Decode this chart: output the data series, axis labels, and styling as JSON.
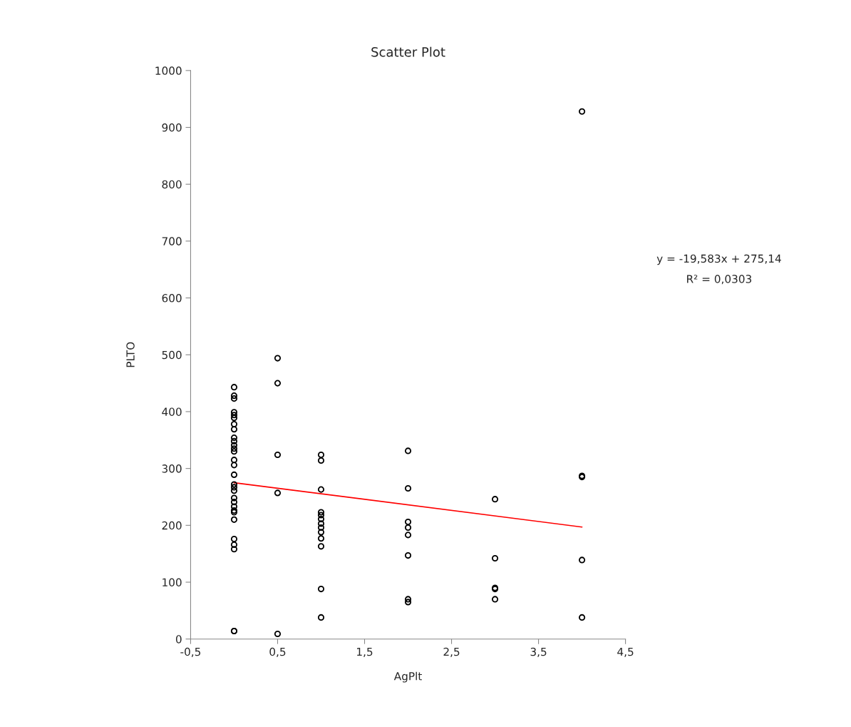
{
  "chart_data": {
    "type": "scatter",
    "title": "Scatter Plot",
    "xlabel": "AgPlt",
    "ylabel": "PLTO",
    "series": [
      {
        "color": "#000000",
        "marker": "circle",
        "x": [
          0,
          0,
          0,
          0,
          0,
          0,
          0,
          0,
          0,
          0,
          0,
          0,
          0,
          0,
          0,
          0,
          0,
          0,
          0,
          0,
          0,
          0,
          0,
          0,
          0,
          0,
          0,
          0,
          0,
          0,
          0.5,
          0.5,
          0.5,
          0.5,
          0.5,
          1,
          1,
          1,
          1,
          1,
          1,
          1,
          1,
          1,
          1,
          1,
          1,
          1,
          2,
          2,
          2,
          2,
          2,
          2,
          2,
          2,
          3,
          3,
          3,
          3,
          3,
          4,
          4,
          4,
          4,
          4
        ],
        "values": [
          443,
          428,
          423,
          399,
          394,
          389,
          378,
          369,
          354,
          348,
          341,
          335,
          330,
          315,
          306,
          289,
          272,
          267,
          261,
          248,
          241,
          233,
          226,
          223,
          210,
          176,
          166,
          158,
          14,
          14,
          494,
          450,
          324,
          257,
          9,
          324,
          314,
          263,
          223,
          218,
          211,
          203,
          196,
          188,
          177,
          163,
          88,
          38,
          331,
          265,
          206,
          196,
          183,
          147,
          70,
          65,
          246,
          142,
          90,
          88,
          70,
          928,
          287,
          285,
          139,
          38
        ]
      },
      {
        "type": "line",
        "color": "#ff0000",
        "line_style": "solid",
        "x": [
          0,
          4
        ],
        "values": [
          275,
          197
        ]
      }
    ],
    "xlim": [
      -0.5,
      4.5
    ],
    "xticks": [
      {
        "value": -0.5,
        "label": "-0,5"
      },
      {
        "value": 0.5,
        "label": "0,5"
      },
      {
        "value": 1.5,
        "label": "1,5"
      },
      {
        "value": 2.5,
        "label": "2,5"
      },
      {
        "value": 3.5,
        "label": "3,5"
      },
      {
        "value": 4.5,
        "label": "4,5"
      }
    ],
    "ylim": [
      0,
      1000
    ],
    "yticks": [
      0,
      100,
      200,
      300,
      400,
      500,
      600,
      700,
      800,
      900,
      1000
    ],
    "annotations": [
      "y = -19,583x + 275,14",
      "R² = 0,0303"
    ],
    "grid": false,
    "legend": false
  }
}
